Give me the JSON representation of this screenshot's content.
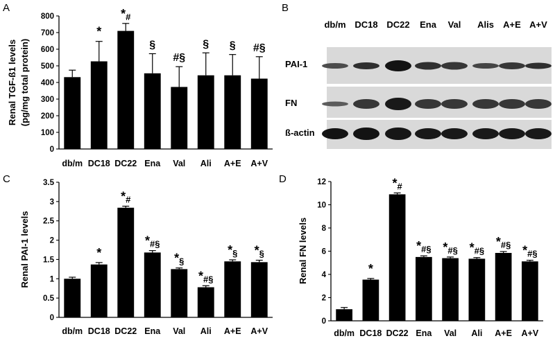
{
  "panels": {
    "A": "A",
    "B": "B",
    "C": "C",
    "D": "D"
  },
  "blot": {
    "lanes": [
      "db/m",
      "DC18",
      "DC22",
      "Ena",
      "Val",
      "Alis",
      "A+E",
      "A+V"
    ],
    "proteins": [
      "PAI-1",
      "FN",
      "ß-actin"
    ]
  },
  "chart_data": [
    {
      "panel": "A",
      "type": "bar",
      "ylabel": [
        "Renal TGF-ß1 levels",
        "(pg/mg total protein)"
      ],
      "categories": [
        "db/m",
        "DC18",
        "DC22",
        "Ena",
        "Val",
        "Ali",
        "A+E",
        "A+V"
      ],
      "values": [
        432,
        527,
        710,
        455,
        373,
        443,
        443,
        423
      ],
      "errors": [
        42,
        120,
        45,
        118,
        122,
        135,
        125,
        132
      ],
      "annotations": [
        "",
        "*",
        "*#",
        "§",
        "#§",
        "§",
        "§",
        "#§"
      ],
      "ylim": [
        0,
        800
      ],
      "yticks": [
        0,
        100,
        200,
        300,
        400,
        500,
        600,
        700,
        800
      ],
      "color": "#000000"
    },
    {
      "panel": "C",
      "type": "bar",
      "ylabel": [
        "Renal PAI-1 levels"
      ],
      "categories": [
        "db/m",
        "DC18",
        "DC22",
        "Ena",
        "Val",
        "Ali",
        "A+E",
        "A+V"
      ],
      "values": [
        1.0,
        1.37,
        2.84,
        1.68,
        1.25,
        0.78,
        1.45,
        1.43
      ],
      "errors": [
        0.04,
        0.05,
        0.04,
        0.05,
        0.03,
        0.04,
        0.04,
        0.05
      ],
      "annotations": [
        "",
        "*",
        "*#",
        "*#§",
        "*§",
        "*#§",
        "*§",
        "*§"
      ],
      "ylim": [
        0,
        3.5
      ],
      "yticks": [
        "0",
        "0.5",
        "1",
        "1.5",
        "2",
        "2.5",
        "3",
        "3.5"
      ],
      "color": "#000000"
    },
    {
      "panel": "D",
      "type": "bar",
      "ylabel": [
        "Renal FN levels"
      ],
      "categories": [
        "db/m",
        "DC18",
        "DC22",
        "Ena",
        "Val",
        "Ali",
        "A+E",
        "A+V"
      ],
      "values": [
        1.0,
        3.55,
        10.9,
        5.5,
        5.4,
        5.35,
        5.85,
        5.12
      ],
      "errors": [
        0.15,
        0.1,
        0.12,
        0.1,
        0.1,
        0.1,
        0.12,
        0.1
      ],
      "annotations": [
        "",
        "*",
        "*#",
        "*#§",
        "*#§",
        "*#§",
        "*#§",
        "*#§"
      ],
      "ylim": [
        0,
        12
      ],
      "yticks": [
        0,
        2,
        4,
        6,
        8,
        10,
        12
      ],
      "color": "#000000"
    }
  ]
}
